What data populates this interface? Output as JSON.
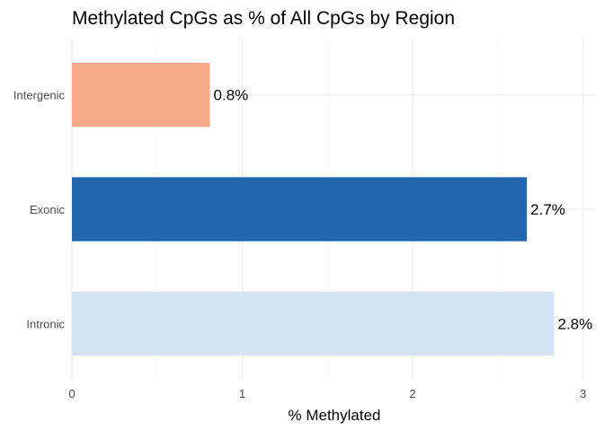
{
  "chart_data": {
    "type": "bar",
    "orientation": "horizontal",
    "title": "Methylated CpGs as % of All CpGs by Region",
    "xlabel": "% Methylated",
    "ylabel": "",
    "categories": [
      "Intronic",
      "Exonic",
      "Intergenic"
    ],
    "values": [
      2.83,
      2.67,
      0.81
    ],
    "data_labels": [
      "2.8%",
      "2.7%",
      "0.8%"
    ],
    "colors": [
      "#d4e4f4",
      "#2166ac",
      "#f7a987"
    ],
    "xlim": [
      0,
      3.07
    ],
    "xticks": [
      0,
      1,
      2,
      3
    ],
    "xtick_labels": [
      "0",
      "1",
      "2",
      "3"
    ],
    "grid": true,
    "legend": "none"
  }
}
